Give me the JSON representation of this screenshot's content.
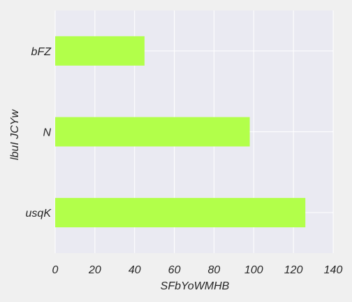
{
  "chart_data": {
    "type": "bar",
    "orientation": "horizontal",
    "title": "",
    "xlabel": "SFbYoWMHB",
    "ylabel": "lbuI JCYw",
    "categories": [
      "bFZ",
      "N",
      "usqK"
    ],
    "values": [
      45,
      98,
      126
    ],
    "xlim": [
      0,
      140
    ],
    "xticks": [
      0,
      20,
      40,
      60,
      80,
      100,
      120,
      140
    ],
    "grid": true,
    "legend": "none",
    "colors": {
      "bar": "#b2ff4a",
      "plot_background": "#eaeaf2",
      "figure_background": "#f0f0f0",
      "grid": "#ffffff",
      "text": "#262626"
    }
  }
}
